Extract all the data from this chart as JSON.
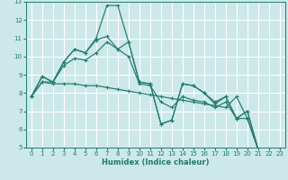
{
  "xlabel": "Humidex (Indice chaleur)",
  "xlim": [
    -0.5,
    23.5
  ],
  "ylim": [
    5,
    13
  ],
  "xticks": [
    0,
    1,
    2,
    3,
    4,
    5,
    6,
    7,
    8,
    9,
    10,
    11,
    12,
    13,
    14,
    15,
    16,
    17,
    18,
    19,
    20,
    21,
    22,
    23
  ],
  "yticks": [
    5,
    6,
    7,
    8,
    9,
    10,
    11,
    12,
    13
  ],
  "bg_color": "#cce8e8",
  "grid_color": "#ffffff",
  "line_color": "#217a6e",
  "lines": [
    {
      "x": [
        0,
        1,
        2,
        3,
        4,
        5,
        6,
        7,
        8,
        9,
        10,
        11,
        12,
        13,
        14,
        15,
        16,
        17,
        18,
        19,
        20,
        21,
        22,
        23
      ],
      "y": [
        7.8,
        8.9,
        8.6,
        9.7,
        10.4,
        10.2,
        11.0,
        12.8,
        12.8,
        10.8,
        8.6,
        8.5,
        6.3,
        6.5,
        8.5,
        8.4,
        8.0,
        7.5,
        7.8,
        6.6,
        7.0,
        4.9,
        4.8,
        4.8
      ]
    },
    {
      "x": [
        0,
        1,
        2,
        3,
        4,
        5,
        6,
        7,
        8,
        9,
        10,
        11,
        12,
        13,
        14,
        15,
        16,
        17,
        18,
        19,
        20,
        21,
        22,
        23
      ],
      "y": [
        7.8,
        8.6,
        8.6,
        9.5,
        9.9,
        9.8,
        10.2,
        10.8,
        10.4,
        10.0,
        8.5,
        8.4,
        7.5,
        7.2,
        7.8,
        7.6,
        7.5,
        7.2,
        7.5,
        6.6,
        6.6,
        4.9,
        4.8,
        4.8
      ]
    },
    {
      "x": [
        0,
        1,
        2,
        3,
        4,
        5,
        6,
        7,
        8,
        9,
        10,
        11,
        12,
        13,
        14,
        15,
        16,
        17,
        18,
        19,
        20,
        21,
        22,
        23
      ],
      "y": [
        7.8,
        8.6,
        8.5,
        8.5,
        8.5,
        8.4,
        8.4,
        8.3,
        8.2,
        8.1,
        8.0,
        7.9,
        7.8,
        7.7,
        7.6,
        7.5,
        7.4,
        7.3,
        7.2,
        7.8,
        6.6,
        4.9,
        4.8,
        4.8
      ]
    },
    {
      "x": [
        0,
        1,
        2,
        3,
        4,
        5,
        6,
        7,
        8,
        9,
        10,
        11,
        12,
        13,
        14,
        15,
        16,
        17,
        18,
        19,
        20,
        21,
        22,
        23
      ],
      "y": [
        7.8,
        8.9,
        8.6,
        9.7,
        10.4,
        10.2,
        10.9,
        11.1,
        10.4,
        10.8,
        8.6,
        8.5,
        6.3,
        6.5,
        8.5,
        8.4,
        8.0,
        7.4,
        7.8,
        6.6,
        7.0,
        4.9,
        4.8,
        4.8
      ]
    }
  ]
}
